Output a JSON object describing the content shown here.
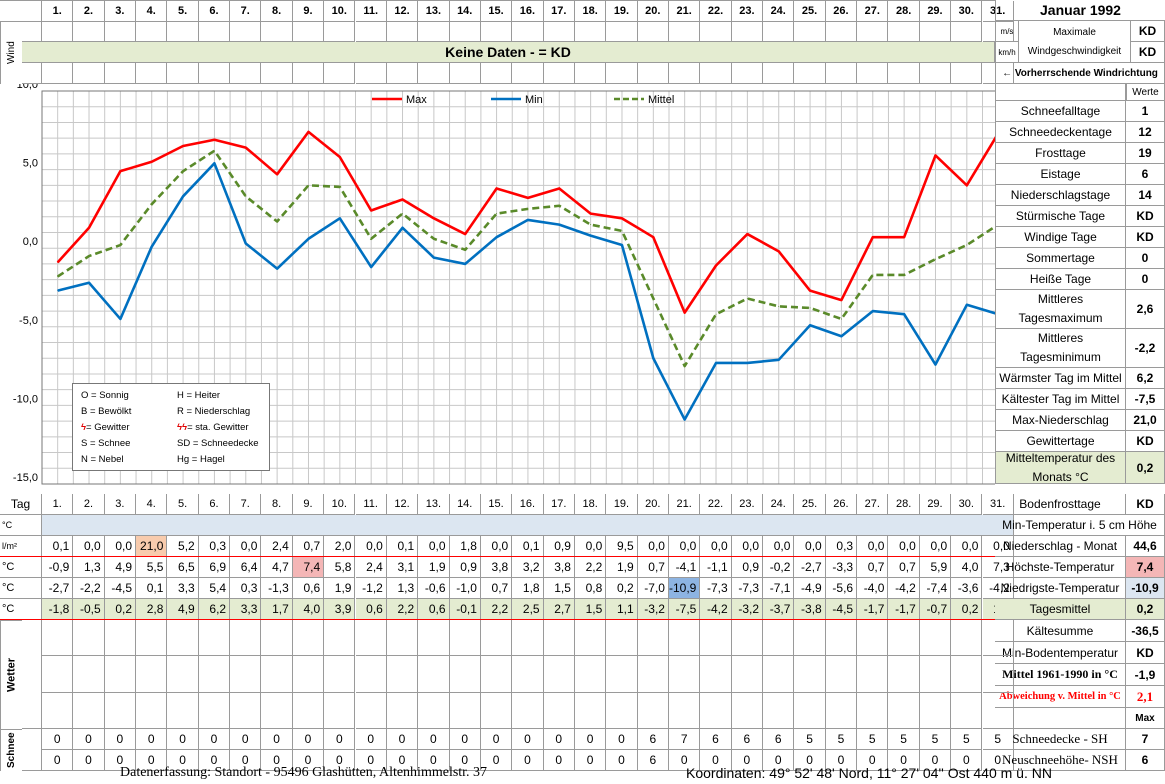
{
  "title": "Januar 1992",
  "days": [
    "1.",
    "2.",
    "3.",
    "4.",
    "5.",
    "6.",
    "7.",
    "8.",
    "9.",
    "10.",
    "11.",
    "12.",
    "13.",
    "14.",
    "15.",
    "16.",
    "17.",
    "18.",
    "19.",
    "20.",
    "21.",
    "22.",
    "23.",
    "24.",
    "25.",
    "26.",
    "27.",
    "28.",
    "29.",
    "30.",
    "31."
  ],
  "wind": {
    "label": "Wind",
    "unit_ms": "m/s",
    "unit_kmh": "km/h",
    "max_label": "Maximale Windgeschwindigkeit",
    "max_ms": "KD",
    "max_kmh": "KD",
    "no_data": "Keine Daten -  = KD",
    "direction_label": "← Vorherrschende Windrichtung"
  },
  "chart_data": {
    "type": "line",
    "x": [
      "1.",
      "2.",
      "3.",
      "4.",
      "5.",
      "6.",
      "7.",
      "8.",
      "9.",
      "10.",
      "11.",
      "12.",
      "13.",
      "14.",
      "15.",
      "16.",
      "17.",
      "18.",
      "19.",
      "20.",
      "21.",
      "22.",
      "23.",
      "24.",
      "25.",
      "26.",
      "27.",
      "28.",
      "29.",
      "30.",
      "31."
    ],
    "ylim": [
      -15,
      10
    ],
    "yticks": [
      "10,0",
      "5,0",
      "0,0",
      "-5,0",
      "-10,0",
      "-15,0"
    ],
    "grid": true,
    "legend_position": "top",
    "series": [
      {
        "name": "Max",
        "color": "#ff0000",
        "dash": false,
        "values": [
          -0.9,
          1.3,
          4.9,
          5.5,
          6.5,
          6.9,
          6.4,
          4.7,
          7.4,
          5.8,
          2.4,
          3.1,
          1.9,
          0.9,
          3.8,
          3.2,
          3.8,
          2.2,
          1.9,
          0.7,
          -4.1,
          -1.1,
          0.9,
          -0.2,
          -2.7,
          -3.3,
          0.7,
          0.7,
          5.9,
          4.0,
          7.3
        ]
      },
      {
        "name": "Min",
        "color": "#0070c0",
        "dash": false,
        "values": [
          -2.7,
          -2.2,
          -4.5,
          0.1,
          3.3,
          5.4,
          0.3,
          -1.3,
          0.6,
          1.9,
          -1.2,
          1.3,
          -0.6,
          -1.0,
          0.7,
          1.8,
          1.5,
          0.8,
          0.2,
          -7.0,
          -10.9,
          -7.3,
          -7.3,
          -7.1,
          -4.9,
          -5.6,
          -4.0,
          -4.2,
          -7.4,
          -3.6,
          -4.2
        ]
      },
      {
        "name": "Mittel",
        "color": "#5a8a2a",
        "dash": true,
        "values": [
          -1.8,
          -0.5,
          0.2,
          2.8,
          4.9,
          6.2,
          3.3,
          1.7,
          4.0,
          3.9,
          0.6,
          2.2,
          0.6,
          -0.1,
          2.2,
          2.5,
          2.7,
          1.5,
          1.1,
          -3.2,
          -7.5,
          -4.2,
          -3.2,
          -3.7,
          -3.8,
          -4.5,
          -1.7,
          -1.7,
          -0.7,
          0.2,
          1.5
        ]
      }
    ]
  },
  "legend_box": [
    [
      "O = Sonnig",
      "H = Heiter"
    ],
    [
      "B = Bewölkt",
      "R = Niederschlag"
    ],
    [
      "= Gewitter",
      "= sta. Gewitter"
    ],
    [
      "S = Schnee",
      "SD = Schneedecke"
    ],
    [
      "N = Nebel",
      "Hg = Hagel"
    ]
  ],
  "stats": {
    "werte": "Werte",
    "rows": [
      {
        "label": "Schneefalltage",
        "value": "1"
      },
      {
        "label": "Schneedeckentage",
        "value": "12"
      },
      {
        "label": "Frosttage",
        "value": "19"
      },
      {
        "label": "Eistage",
        "value": "6"
      },
      {
        "label": "Niederschlagstage",
        "value": "14"
      },
      {
        "label": "Stürmische Tage",
        "value": "KD"
      },
      {
        "label": "Windige Tage",
        "value": "KD"
      },
      {
        "label": "Sommertage",
        "value": "0"
      },
      {
        "label": "Heiße Tage",
        "value": "0"
      },
      {
        "label": "Mittleres Tagesmaximum",
        "value": "2,6"
      },
      {
        "label": "Mittleres Tagesminimum",
        "value": "-2,2"
      },
      {
        "label": "Wärmster Tag im Mittel",
        "value": "6,2"
      },
      {
        "label": "Kältester Tag im Mittel",
        "value": "-7,5"
      },
      {
        "label": "Max-Niederschlag",
        "value": "21,0"
      },
      {
        "label": "Gewittertage",
        "value": "KD"
      },
      {
        "label": "Mitteltemperatur des Monats °C",
        "value": "0,2"
      }
    ]
  },
  "table": {
    "tag_label": "Tag",
    "bodenfrost_label": "Bodenfrosttage",
    "bodenfrost_value": "KD",
    "min5_unit": "°C",
    "min5_label": "Min-Temperatur i. 5 cm Höhe",
    "rows": [
      {
        "unit": "l/m²",
        "label": "Niederschlag - Monat",
        "total": "44,6",
        "values": [
          "0,1",
          "0,0",
          "0,0",
          "21,0",
          "5,2",
          "0,3",
          "0,0",
          "2,4",
          "0,7",
          "2,0",
          "0,0",
          "0,1",
          "0,0",
          "1,8",
          "0,0",
          "0,1",
          "0,9",
          "0,0",
          "9,5",
          "0,0",
          "0,0",
          "0,0",
          "0,0",
          "0,0",
          "0,0",
          "0,3",
          "0,0",
          "0,0",
          "0,0",
          "0,0",
          "0,0"
        ]
      },
      {
        "unit": "°C",
        "label": "Höchste-Temperatur",
        "total": "7,4",
        "values": [
          "-0,9",
          "1,3",
          "4,9",
          "5,5",
          "6,5",
          "6,9",
          "6,4",
          "4,7",
          "7,4",
          "5,8",
          "2,4",
          "3,1",
          "1,9",
          "0,9",
          "3,8",
          "3,2",
          "3,8",
          "2,2",
          "1,9",
          "0,7",
          "-4,1",
          "-1,1",
          "0,9",
          "-0,2",
          "-2,7",
          "-3,3",
          "0,7",
          "0,7",
          "5,9",
          "4,0",
          "7,3"
        ]
      },
      {
        "unit": "°C",
        "label": "Niedrigste-Temperatur",
        "total": "-10,9",
        "values": [
          "-2,7",
          "-2,2",
          "-4,5",
          "0,1",
          "3,3",
          "5,4",
          "0,3",
          "-1,3",
          "0,6",
          "1,9",
          "-1,2",
          "1,3",
          "-0,6",
          "-1,0",
          "0,7",
          "1,8",
          "1,5",
          "0,8",
          "0,2",
          "-7,0",
          "-10,9",
          "-7,3",
          "-7,3",
          "-7,1",
          "-4,9",
          "-5,6",
          "-4,0",
          "-4,2",
          "-7,4",
          "-3,6",
          "-4,2"
        ]
      },
      {
        "unit": "°C",
        "label": "Tagesmittel",
        "total": "0,2",
        "values": [
          "-1,8",
          "-0,5",
          "0,2",
          "2,8",
          "4,9",
          "6,2",
          "3,3",
          "1,7",
          "4,0",
          "3,9",
          "0,6",
          "2,2",
          "0,6",
          "-0,1",
          "2,2",
          "2,5",
          "2,7",
          "1,5",
          "1,1",
          "-3,2",
          "-7,5",
          "-4,2",
          "-3,2",
          "-3,7",
          "-3,8",
          "-4,5",
          "-1,7",
          "-1,7",
          "-0,7",
          "0,2",
          "1,5"
        ]
      }
    ],
    "kaeltesumme_label": "Kältesumme",
    "kaeltesumme_value": "-36,5",
    "minboden_label": "Min-Bodentemperatur",
    "minboden_value": "KD",
    "mittel6190_label": "Mittel 1961-1990 in °C",
    "mittel6190_value": "-1,9",
    "abweichung_label": "Abweichung v. Mittel in °C",
    "abweichung_value": "2,1",
    "wetter_label": "Wetter",
    "max_label": "Max",
    "schnee_label": "Schnee",
    "schneedecke_label": "Schneedecke -  SH",
    "schneedecke_max": "7",
    "schneedecke_values": [
      "0",
      "0",
      "0",
      "0",
      "0",
      "0",
      "0",
      "0",
      "0",
      "0",
      "0",
      "0",
      "0",
      "0",
      "0",
      "0",
      "0",
      "0",
      "0",
      "6",
      "7",
      "6",
      "6",
      "6",
      "5",
      "5",
      "5",
      "5",
      "5",
      "5",
      "5"
    ],
    "neuschnee_label": "Neuschneehöhe-  NSH",
    "neuschnee_max": "6",
    "neuschnee_values": [
      "0",
      "0",
      "0",
      "0",
      "0",
      "0",
      "0",
      "0",
      "0",
      "0",
      "0",
      "0",
      "0",
      "0",
      "0",
      "0",
      "0",
      "0",
      "0",
      "6",
      "0",
      "0",
      "0",
      "0",
      "0",
      "0",
      "0",
      "0",
      "0",
      "0",
      "0"
    ]
  },
  "footer": {
    "location": "Datenerfassung:  Standort -  95496  Glashütten, Altenhimmelstr. 37",
    "coords": "Koordinaten:  49° 52' 48' Nord,  11° 27' 04'' Ost   440 m ü. NN"
  },
  "colors": {
    "grid_green": "#e4ecd1",
    "highlight_orange": "#f8cbad",
    "highlight_pink": "#f4b6b6",
    "highlight_blue": "#8db4e2",
    "header_blue": "#dce6f1",
    "red_text": "#ff0000"
  }
}
